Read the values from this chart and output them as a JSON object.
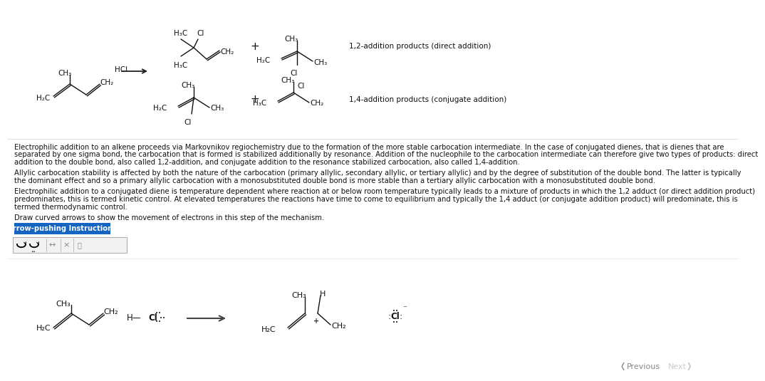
{
  "bg_color": "#ffffff",
  "paragraph1_lines": [
    "Electrophilic addition to an alkene proceeds via Markovnikov regiochemistry due to the formation of the more stable carbocation intermediate. In the case of conjugated dienes, that is dienes that are",
    "separated by one sigma bond, the carbocation that is formed is stabilized additionally by resonance. Addition of the nucleophile to the carbocation intermediate can therefore give two types of products: direct",
    "addition to the double bond, also called 1,2-addition, and conjugate addition to the resonance stabilized carbocation, also called 1,4-addition."
  ],
  "paragraph2_lines": [
    "Allylic carbocation stability is affected by both the nature of the carbocation (primary allylic, secondary allylic, or tertiary allylic) and by the degree of substitution of the double bond. The latter is typically",
    "the dominant effect and so a primary allylic carbocation with a monosubstituted double bond is more stable than a tertiary allylic carbocation with a monosubstituted double bond."
  ],
  "paragraph3_lines": [
    "Electrophilic addition to a conjugated diene is temperature dependent where reaction at or below room temperature typically leads to a mixture of products in which the 1,2 adduct (or direct addition product)",
    "predominates, this is termed kinetic control. At elevated temperatures the reactions have time to come to equilibrium and typically the 1,4 adduct (or conjugate addition product) will predominate, this is",
    "termed thermodynamic control."
  ],
  "draw_text": "Draw curved arrows to show the movement of electrons in this step of the mechanism.",
  "btn_text": "Arrow-pushing Instructions",
  "btn_color": "#1565c0",
  "btn_text_color": "#ffffff",
  "label_12": "1,2-addition products (direct addition)",
  "label_14": "1,4-addition products (conjugate addition)",
  "nav_previous": "Previous",
  "nav_next": "Next"
}
